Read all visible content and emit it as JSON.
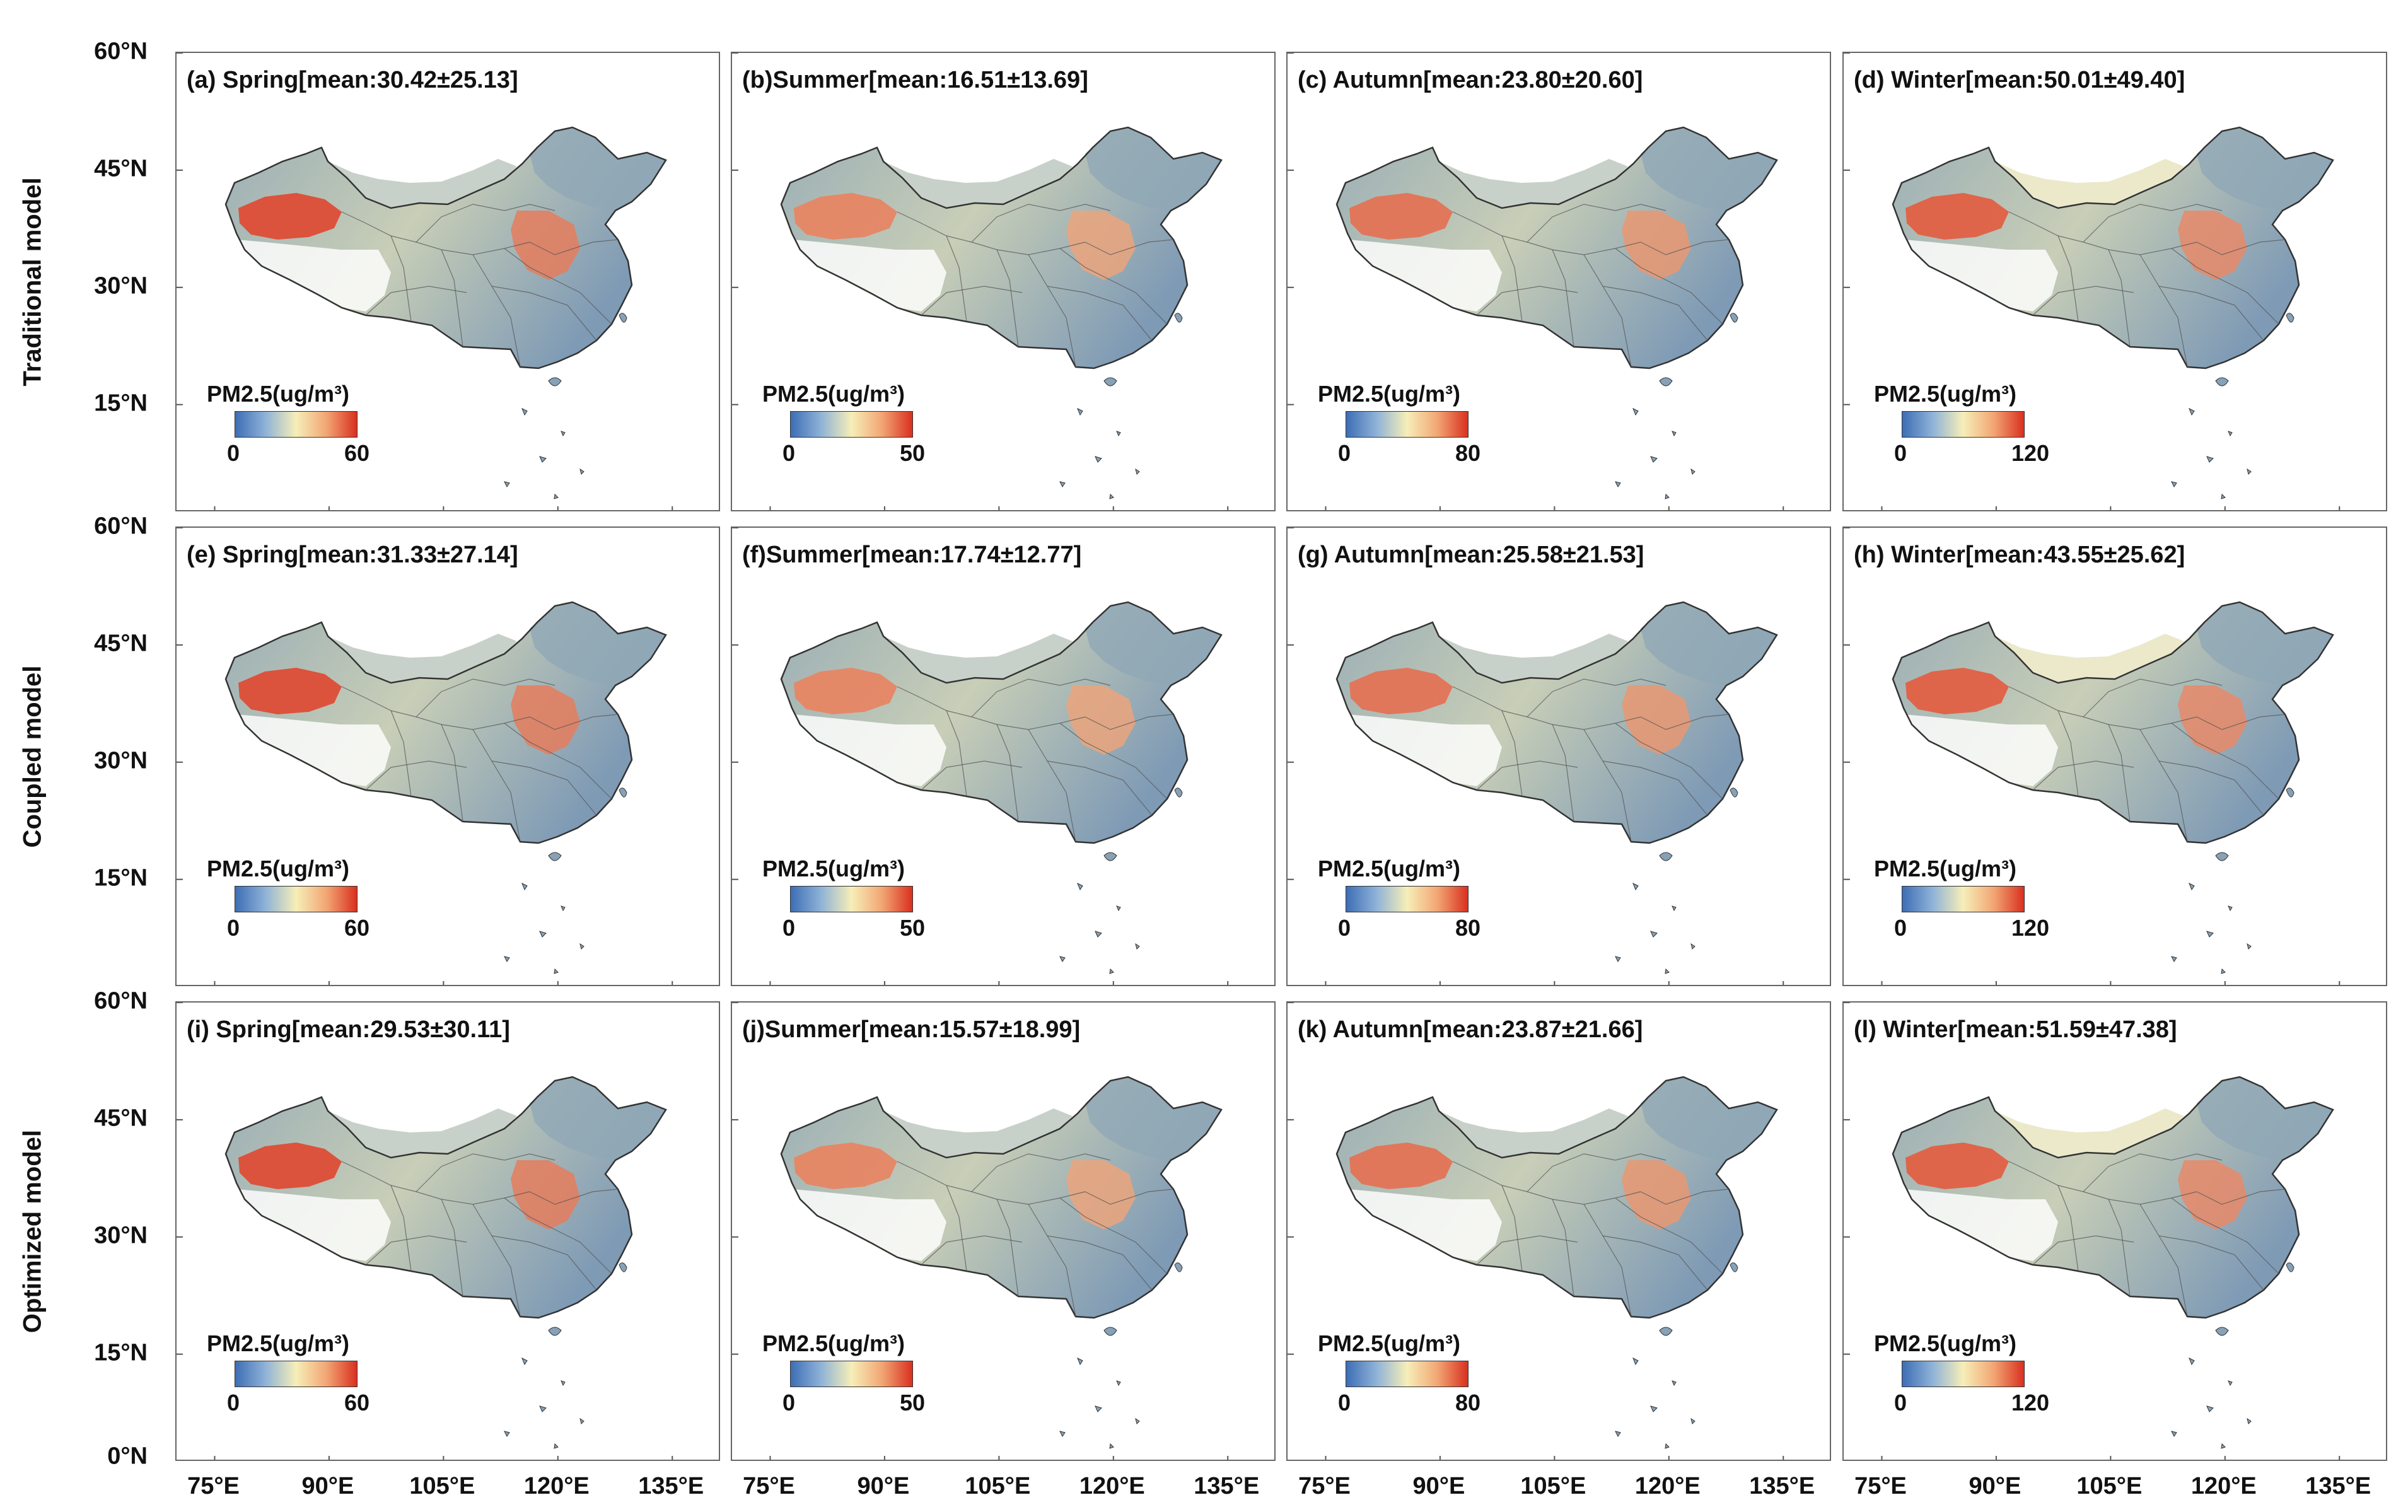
{
  "row_labels": [
    "Traditional model",
    "Coupled model",
    "Optimized model"
  ],
  "lat_labels": [
    "60°N",
    "45°N",
    "30°N",
    "15°N"
  ],
  "bottom_lat_label": "0°N",
  "lon_labels": [
    "75°E",
    "90°E",
    "105°E",
    "120°E",
    "135°E"
  ],
  "legend_title": "PM2.5(ug/m³)",
  "seasons": [
    {
      "key": "spring",
      "min": "0",
      "max": "60",
      "hot": 0.85
    },
    {
      "key": "summer",
      "min": "0",
      "max": "50",
      "hot": 0.55
    },
    {
      "key": "autumn",
      "min": "0",
      "max": "80",
      "hot": 0.65
    },
    {
      "key": "winter",
      "min": "0",
      "max": "120",
      "hot": 0.75
    }
  ],
  "panels": [
    {
      "title": "(a) Spring[mean:30.42±25.13]"
    },
    {
      "title": "(b)Summer[mean:16.51±13.69]"
    },
    {
      "title": "(c) Autumn[mean:23.80±20.60]"
    },
    {
      "title": "(d) Winter[mean:50.01±49.40]"
    },
    {
      "title": "(e) Spring[mean:31.33±27.14]"
    },
    {
      "title": "(f)Summer[mean:17.74±12.77]"
    },
    {
      "title": "(g) Autumn[mean:25.58±21.53]"
    },
    {
      "title": "(h) Winter[mean:43.55±25.62]"
    },
    {
      "title": "(i) Spring[mean:29.53±30.11]"
    },
    {
      "title": "(j)Summer[mean:15.57±18.99]"
    },
    {
      "title": "(k) Autumn[mean:23.87±21.66]"
    },
    {
      "title": "(l) Winter[mean:51.59±47.38]"
    }
  ],
  "colors": {
    "low": "#3d6db4",
    "mid": "#f6eeb8",
    "high": "#d9301f",
    "border": "#333333"
  }
}
